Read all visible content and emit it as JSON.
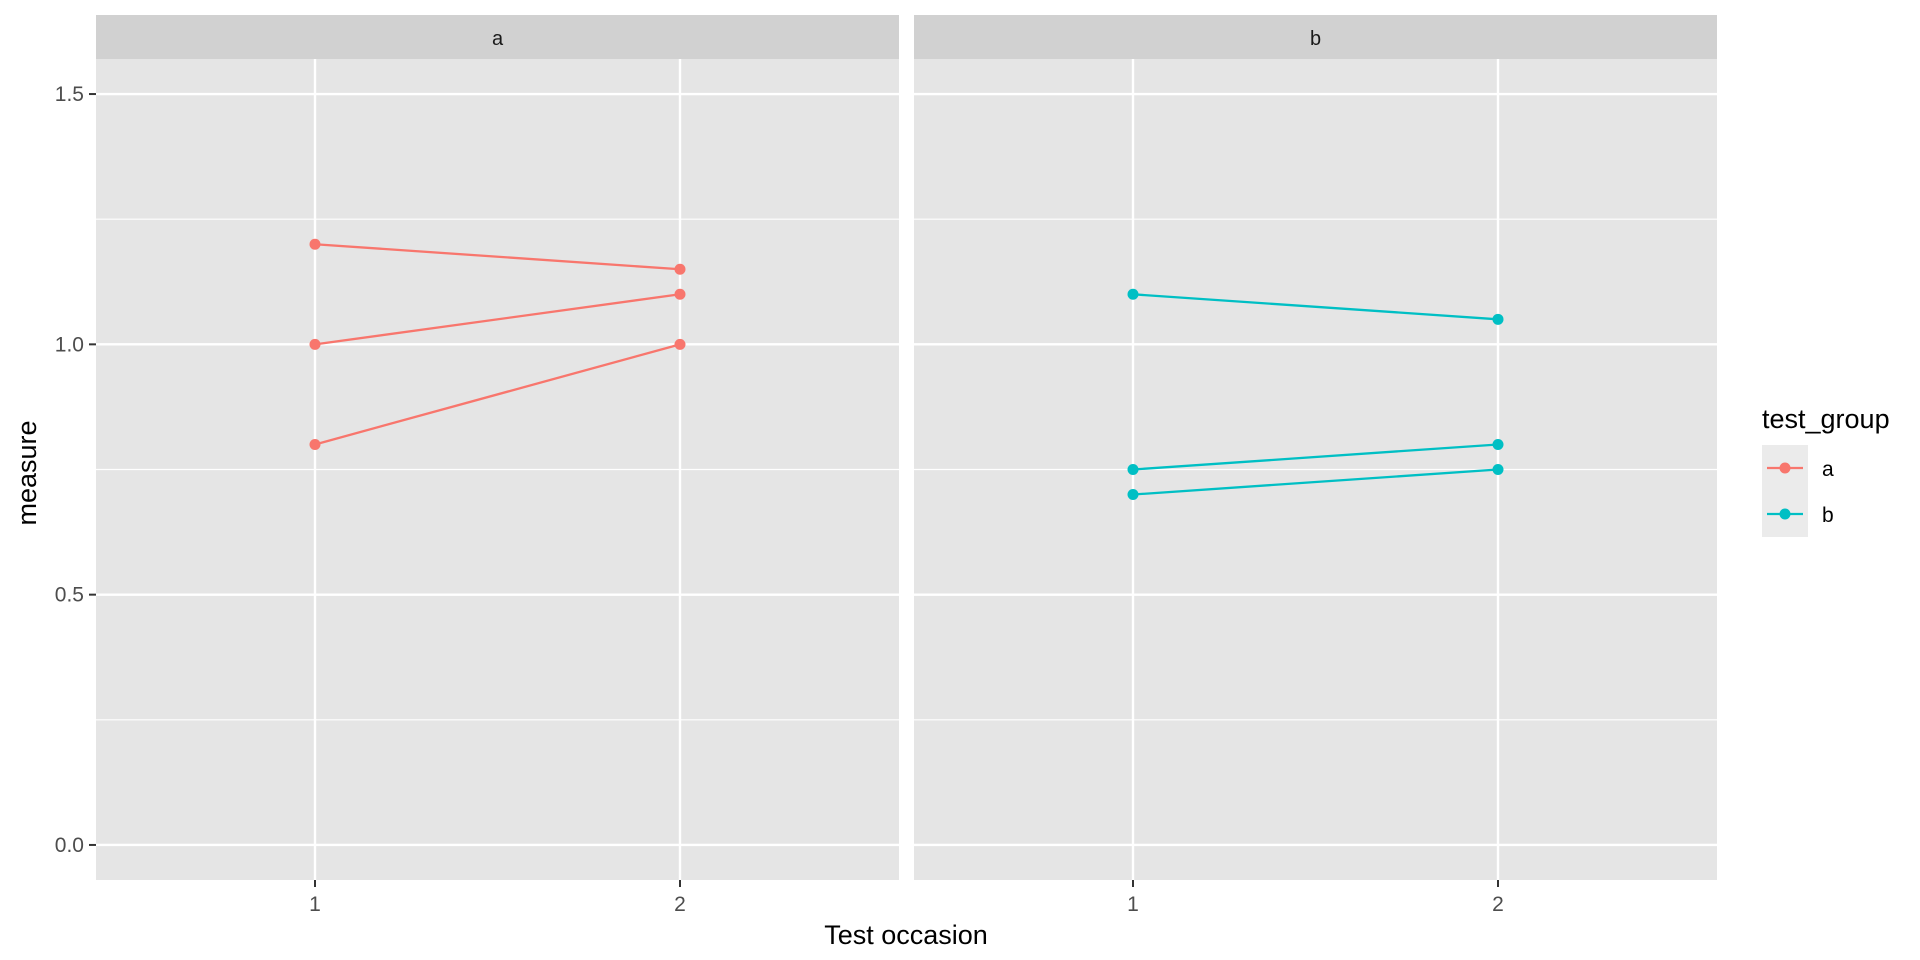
{
  "chart_data": {
    "type": "line",
    "facets": [
      "a",
      "b"
    ],
    "x_ticks": [
      1,
      2
    ],
    "y_ticks": [
      0.0,
      0.5,
      1.0,
      1.5
    ],
    "y_tick_labels": [
      "0.0",
      "0.5",
      "1.0",
      "1.5"
    ],
    "x_tick_labels": [
      "1",
      "2"
    ],
    "xlim": [
      0.4,
      2.6
    ],
    "ylim": [
      -0.07,
      1.57
    ],
    "xlabel": "Test occasion",
    "ylabel": "measure",
    "grid": true,
    "legend": {
      "title": "test_group",
      "placement": "right",
      "entries": [
        {
          "label": "a",
          "color": "#F8766D"
        },
        {
          "label": "b",
          "color": "#00BFC4"
        }
      ]
    },
    "series": [
      {
        "facet": "a",
        "group": "a",
        "color": "#F8766D",
        "x": [
          1,
          2
        ],
        "y": [
          1.2,
          1.15
        ]
      },
      {
        "facet": "a",
        "group": "a",
        "color": "#F8766D",
        "x": [
          1,
          2
        ],
        "y": [
          1.0,
          1.1
        ]
      },
      {
        "facet": "a",
        "group": "a",
        "color": "#F8766D",
        "x": [
          1,
          2
        ],
        "y": [
          0.8,
          1.0
        ]
      },
      {
        "facet": "b",
        "group": "b",
        "color": "#00BFC4",
        "x": [
          1,
          2
        ],
        "y": [
          1.1,
          1.05
        ]
      },
      {
        "facet": "b",
        "group": "b",
        "color": "#00BFC4",
        "x": [
          1,
          2
        ],
        "y": [
          0.75,
          0.8
        ]
      },
      {
        "facet": "b",
        "group": "b",
        "color": "#00BFC4",
        "x": [
          1,
          2
        ],
        "y": [
          0.7,
          0.75
        ]
      }
    ]
  },
  "colors": {
    "panel_bg": "#E5E5E5",
    "strip_bg": "#D1D1D1",
    "grid_major": "#FFFFFF",
    "legend_key_bg": "#EBEBEB"
  }
}
